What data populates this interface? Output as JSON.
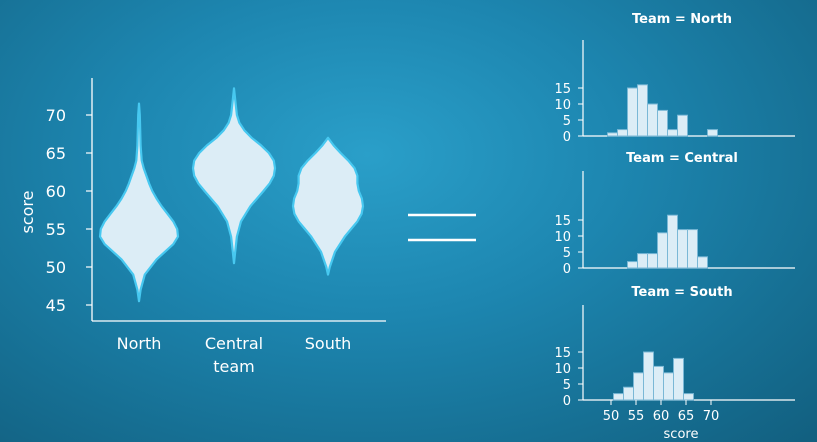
{
  "colors": {
    "violin_fill": "#dcedf6",
    "violin_edge": "#47c8f0",
    "bar_fill": "#dcedf6",
    "bar_edge": "#7ab8d6",
    "text": "#ffffff",
    "axis": "#ffffff"
  },
  "chart_data": [
    {
      "type": "violin",
      "xlabel": "team",
      "ylabel": "score",
      "categories": [
        "North",
        "Central",
        "South"
      ],
      "yticks": [
        45,
        50,
        55,
        60,
        65,
        70
      ],
      "ylim": [
        43.5,
        74.5
      ],
      "violins": [
        {
          "name": "North",
          "min": 45.5,
          "max": 71.5,
          "profile": [
            [
              45.5,
              0.0
            ],
            [
              47,
              0.04
            ],
            [
              49,
              0.15
            ],
            [
              51,
              0.45
            ],
            [
              53,
              0.88
            ],
            [
              54,
              1.0
            ],
            [
              55,
              0.98
            ],
            [
              56,
              0.88
            ],
            [
              57,
              0.73
            ],
            [
              58,
              0.58
            ],
            [
              59,
              0.45
            ],
            [
              60,
              0.34
            ],
            [
              61,
              0.26
            ],
            [
              62,
              0.19
            ],
            [
              63,
              0.12
            ],
            [
              64,
              0.07
            ],
            [
              66,
              0.04
            ],
            [
              68,
              0.03
            ],
            [
              70,
              0.02
            ],
            [
              71.5,
              0.0
            ]
          ]
        },
        {
          "name": "Central",
          "min": 50.5,
          "max": 73.5,
          "profile": [
            [
              50.5,
              0.0
            ],
            [
              52,
              0.03
            ],
            [
              54,
              0.07
            ],
            [
              56,
              0.17
            ],
            [
              58,
              0.4
            ],
            [
              60,
              0.72
            ],
            [
              61,
              0.87
            ],
            [
              62,
              0.97
            ],
            [
              63,
              1.0
            ],
            [
              64,
              0.97
            ],
            [
              65,
              0.85
            ],
            [
              66,
              0.66
            ],
            [
              67,
              0.43
            ],
            [
              68,
              0.25
            ],
            [
              69,
              0.13
            ],
            [
              70,
              0.07
            ],
            [
              72,
              0.03
            ],
            [
              73.5,
              0.0
            ]
          ]
        },
        {
          "name": "South",
          "min": 49.0,
          "max": 67.0,
          "profile": [
            [
              49,
              0.0
            ],
            [
              50,
              0.05
            ],
            [
              52,
              0.2
            ],
            [
              54,
              0.48
            ],
            [
              55,
              0.66
            ],
            [
              56,
              0.84
            ],
            [
              57,
              0.96
            ],
            [
              58,
              1.0
            ],
            [
              59,
              0.97
            ],
            [
              60,
              0.88
            ],
            [
              61,
              0.84
            ],
            [
              62,
              0.84
            ],
            [
              63,
              0.76
            ],
            [
              64,
              0.58
            ],
            [
              65,
              0.36
            ],
            [
              66,
              0.16
            ],
            [
              67,
              0.0
            ]
          ]
        }
      ]
    },
    {
      "type": "bar",
      "title": "Team = North",
      "yticks": [
        0,
        5,
        10,
        15
      ],
      "ylim": [
        0,
        18
      ],
      "bin_edges": [
        49.3,
        51.3,
        53.3,
        55.3,
        57.3,
        59.3,
        61.3,
        63.3,
        65.3,
        67.3,
        69.3,
        71.3
      ],
      "values": [
        1,
        2,
        15,
        16,
        10,
        8,
        2,
        6.5,
        0,
        0,
        2
      ]
    },
    {
      "type": "bar",
      "title": "Team = Central",
      "yticks": [
        0,
        5,
        10,
        15
      ],
      "ylim": [
        0,
        19
      ],
      "bin_edges": [
        53.3,
        55.3,
        57.3,
        59.3,
        61.3,
        63.3,
        65.3,
        67.3,
        69.3
      ],
      "values": [
        2,
        4.5,
        4.5,
        11,
        16.5,
        12,
        12,
        3.5
      ]
    },
    {
      "type": "bar",
      "title": "Team = South",
      "xlabel": "score",
      "xticks": [
        50,
        55,
        60,
        65,
        70
      ],
      "xlim": [
        46.5,
        73.5
      ],
      "yticks": [
        0,
        5,
        10,
        15
      ],
      "ylim": [
        0,
        18
      ],
      "bin_edges": [
        50.5,
        52.5,
        54.5,
        56.5,
        58.5,
        60.5,
        62.5,
        64.5,
        66.5
      ],
      "values": [
        2,
        4,
        8.5,
        15,
        10.5,
        8.5,
        13,
        2
      ]
    }
  ]
}
